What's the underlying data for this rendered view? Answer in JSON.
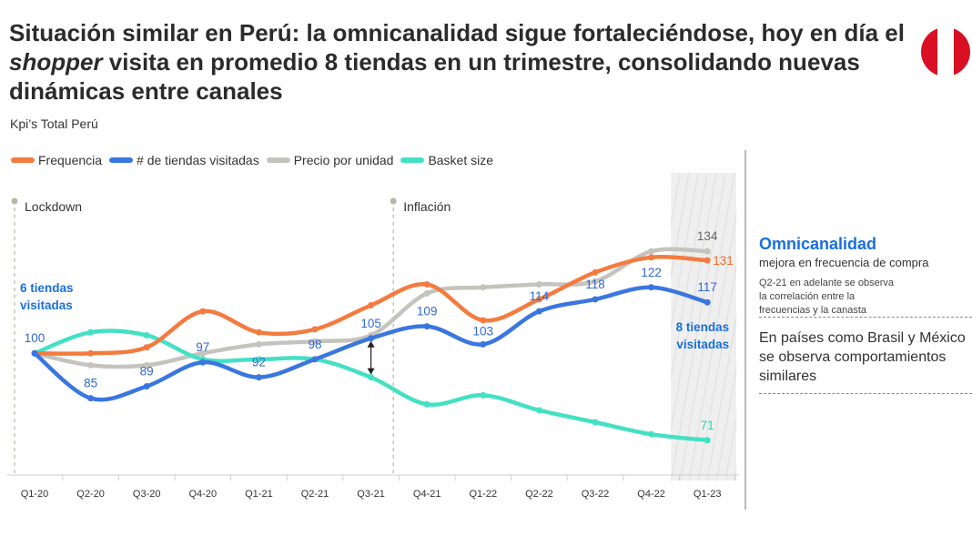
{
  "header": {
    "title_part1": "Situación similar en Perú: la omnicanalidad sigue fortaleciéndose, hoy en día el ",
    "title_italic": "shopper",
    "title_part2": " visita en promedio 8 tiendas en un trimestre, consolidando nuevas dinámicas entre canales",
    "subtitle": "Kpi’s Total Perú"
  },
  "flag": {
    "name": "peru-flag",
    "colors": [
      "#d91023",
      "#ffffff",
      "#d91023"
    ]
  },
  "side_panel": {
    "heading": "Omnicanalidad",
    "subheading": "mejora en frecuencia de compra",
    "note": "Q2-21 en adelante se observa la correlación entre la frecuencias y la canasta",
    "comparison": "En países como Brasil y México se observa comportamientos similares"
  },
  "chart_data": {
    "type": "line",
    "categories": [
      "Q1-20",
      "Q2-20",
      "Q3-20",
      "Q4-20",
      "Q1-21",
      "Q2-21",
      "Q3-21",
      "Q4-21",
      "Q1-22",
      "Q2-22",
      "Q3-22",
      "Q4-22",
      "Q1-23"
    ],
    "ylim": [
      60,
      145
    ],
    "grid": false,
    "legend_position": "top-left",
    "series": [
      {
        "name": "Frequencia",
        "color": "#f47b3f",
        "values": [
          100,
          100,
          102,
          114,
          107,
          108,
          116,
          123,
          111,
          118,
          127,
          132,
          131
        ]
      },
      {
        "name": "# de tiendas visitadas",
        "color": "#3a76e0",
        "values": [
          100,
          85,
          89,
          97,
          92,
          98,
          105,
          109,
          103,
          114,
          118,
          122,
          117
        ]
      },
      {
        "name": "Precio por unidad",
        "color": "#c4c3bd",
        "values": [
          100,
          96,
          96,
          100,
          103,
          104,
          106,
          120,
          122,
          123,
          124,
          134,
          134
        ]
      },
      {
        "name": "Basket size",
        "color": "#44e0c4",
        "values": [
          100,
          107,
          106,
          98,
          98,
          98,
          92,
          83,
          86,
          81,
          77,
          73,
          71
        ]
      }
    ],
    "data_labels": [
      {
        "series": "# de tiendas visitadas",
        "index": 0,
        "text": "100"
      },
      {
        "series": "# de tiendas visitadas",
        "index": 1,
        "text": "85"
      },
      {
        "series": "# de tiendas visitadas",
        "index": 2,
        "text": "89"
      },
      {
        "series": "# de tiendas visitadas",
        "index": 3,
        "text": "97"
      },
      {
        "series": "# de tiendas visitadas",
        "index": 4,
        "text": "92"
      },
      {
        "series": "# de tiendas visitadas",
        "index": 5,
        "text": "98"
      },
      {
        "series": "# de tiendas visitadas",
        "index": 6,
        "text": "105"
      },
      {
        "series": "# de tiendas visitadas",
        "index": 7,
        "text": "109"
      },
      {
        "series": "# de tiendas visitadas",
        "index": 8,
        "text": "103"
      },
      {
        "series": "# de tiendas visitadas",
        "index": 9,
        "text": "114"
      },
      {
        "series": "# de tiendas visitadas",
        "index": 10,
        "text": "118"
      },
      {
        "series": "# de tiendas visitadas",
        "index": 11,
        "text": "122"
      },
      {
        "series": "# de tiendas visitadas",
        "index": 12,
        "text": "117"
      },
      {
        "series": "Precio por unidad",
        "index": 12,
        "text": "134"
      },
      {
        "series": "Frequencia",
        "index": 12,
        "text": "131"
      },
      {
        "series": "Basket size",
        "index": 12,
        "text": "71"
      }
    ],
    "annotations": {
      "events": [
        {
          "category": "Q1-20",
          "label": "Lockdown"
        },
        {
          "category": "Q4-21",
          "label": "Inflación"
        }
      ],
      "start_label": [
        "6 tiendas",
        "visitadas"
      ],
      "end_label": [
        "8 tiendas",
        "visitadas"
      ],
      "highlight_category": "Q1-23",
      "arrow_category": "Q3-21"
    }
  }
}
